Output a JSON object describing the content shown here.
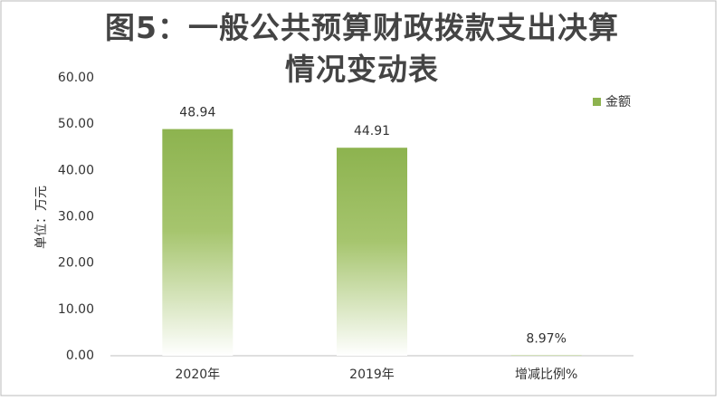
{
  "chart_data": {
    "type": "bar",
    "title": "图5：一般公共预算财政拨款支出决算情况变动表",
    "y_label": "单位：万元",
    "categories": [
      "2020年",
      "2019年",
      "增减比例%"
    ],
    "series": [
      {
        "name": "金额",
        "color": "#8db34f",
        "values": [
          48.94,
          44.91,
          0.0897
        ],
        "value_labels": [
          "48.94",
          "44.91",
          "8.97%"
        ]
      }
    ],
    "ylim": [
      0,
      60
    ],
    "yticks": [
      {
        "value": 0,
        "label": "0.00"
      },
      {
        "value": 10,
        "label": "10.00"
      },
      {
        "value": 20,
        "label": "20.00"
      },
      {
        "value": 30,
        "label": "30.00"
      },
      {
        "value": 40,
        "label": "40.00"
      },
      {
        "value": 50,
        "label": "50.00"
      },
      {
        "value": 60,
        "label": "60.00"
      }
    ],
    "legend": "top-right"
  }
}
